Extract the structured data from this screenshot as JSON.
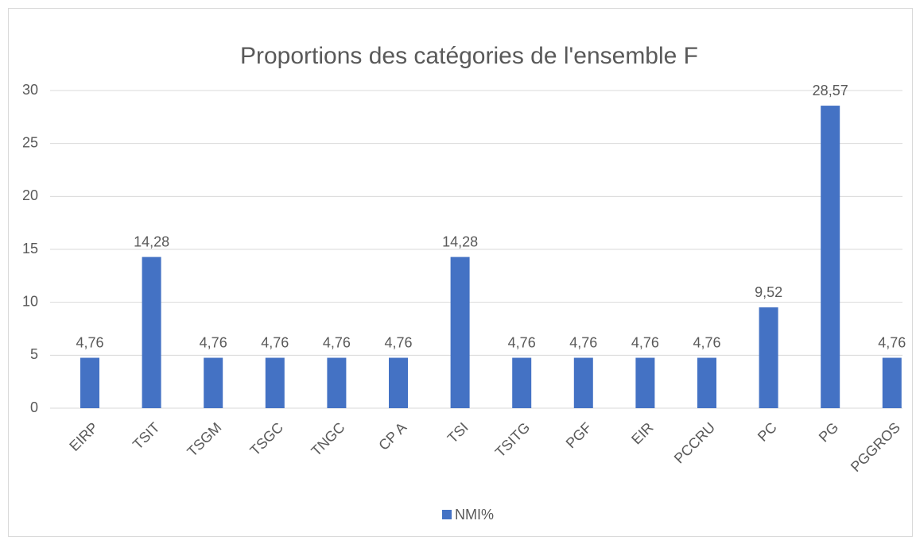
{
  "chart_data": {
    "type": "bar",
    "title": "Proportions des catégories de l'ensemble F",
    "categories": [
      "EIRP",
      "TSIT",
      "TSGM",
      "TSGC",
      "TNGC",
      "CP A",
      "TSI",
      "TSITG",
      "PGF",
      "EIR",
      "PCCRU",
      "PC",
      "PG",
      "PGGROS"
    ],
    "series": [
      {
        "name": "NMI%",
        "color": "#4472c4",
        "values": [
          4.76,
          14.28,
          4.76,
          4.76,
          4.76,
          4.76,
          14.28,
          4.76,
          4.76,
          4.76,
          4.76,
          9.52,
          28.57,
          4.76
        ],
        "value_labels": [
          "4,76",
          "14,28",
          "4,76",
          "4,76",
          "4,76",
          "4,76",
          "14,28",
          "4,76",
          "4,76",
          "4,76",
          "4,76",
          "9,52",
          "28,57",
          "4,76"
        ]
      }
    ],
    "ylim": [
      0,
      30
    ],
    "yticks": [
      0,
      5,
      10,
      15,
      20,
      25,
      30
    ],
    "grid": true,
    "legend": "bottom"
  }
}
